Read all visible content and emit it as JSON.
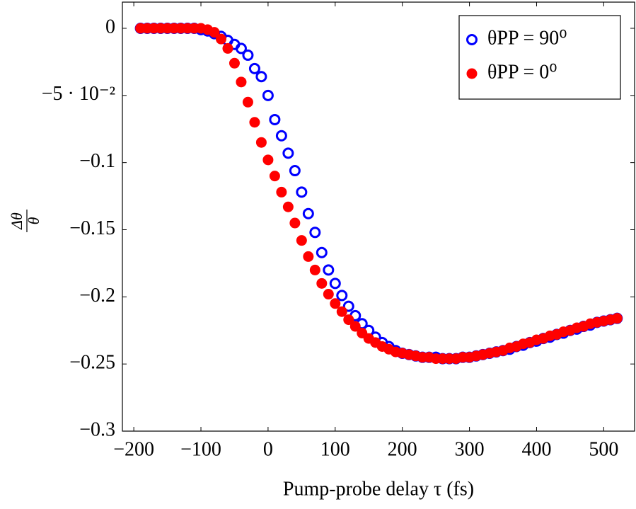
{
  "chart_data": {
    "type": "scatter",
    "xlabel": "Pump-probe delay τ (fs)",
    "ylabel": {
      "numerator": "Δθ",
      "denominator": "θ"
    },
    "x": [
      -190,
      -180,
      -170,
      -160,
      -150,
      -140,
      -130,
      -120,
      -110,
      -100,
      -90,
      -80,
      -70,
      -60,
      -50,
      -40,
      -30,
      -20,
      -10,
      0,
      10,
      20,
      30,
      40,
      50,
      60,
      70,
      80,
      90,
      100,
      110,
      120,
      130,
      140,
      150,
      160,
      170,
      180,
      190,
      200,
      210,
      220,
      230,
      240,
      250,
      260,
      270,
      280,
      290,
      300,
      310,
      320,
      330,
      340,
      350,
      360,
      370,
      380,
      390,
      400,
      410,
      420,
      430,
      440,
      450,
      460,
      470,
      480,
      490,
      500,
      510,
      520
    ],
    "series": [
      {
        "name": "θPP = 90⁰",
        "color": "#0000ff",
        "marker": "open",
        "values": [
          0,
          0,
          0,
          0,
          0,
          0,
          0,
          0,
          0,
          -0.001,
          -0.002,
          -0.004,
          -0.006,
          -0.009,
          -0.012,
          -0.015,
          -0.02,
          -0.03,
          -0.036,
          -0.05,
          -0.068,
          -0.08,
          -0.093,
          -0.106,
          -0.122,
          -0.138,
          -0.152,
          -0.167,
          -0.18,
          -0.19,
          -0.199,
          -0.207,
          -0.214,
          -0.22,
          -0.225,
          -0.23,
          -0.234,
          -0.237,
          -0.24,
          -0.242,
          -0.243,
          -0.244,
          -0.245,
          -0.245,
          -0.245,
          -0.246,
          -0.246,
          -0.246,
          -0.245,
          -0.245,
          -0.244,
          -0.243,
          -0.242,
          -0.241,
          -0.24,
          -0.239,
          -0.237,
          -0.236,
          -0.234,
          -0.233,
          -0.231,
          -0.23,
          -0.228,
          -0.227,
          -0.225,
          -0.224,
          -0.222,
          -0.221,
          -0.219,
          -0.218,
          -0.217,
          -0.216
        ]
      },
      {
        "name": "θPP = 0⁰",
        "color": "#ff0000",
        "marker": "filled",
        "values": [
          0,
          0,
          0,
          0,
          0,
          0,
          0,
          0,
          0,
          0,
          -0.001,
          -0.003,
          -0.008,
          -0.015,
          -0.026,
          -0.04,
          -0.055,
          -0.07,
          -0.085,
          -0.098,
          -0.11,
          -0.122,
          -0.133,
          -0.145,
          -0.158,
          -0.17,
          -0.18,
          -0.19,
          -0.198,
          -0.205,
          -0.211,
          -0.217,
          -0.222,
          -0.227,
          -0.231,
          -0.234,
          -0.237,
          -0.239,
          -0.241,
          -0.242,
          -0.243,
          -0.244,
          -0.245,
          -0.245,
          -0.246,
          -0.246,
          -0.246,
          -0.246,
          -0.245,
          -0.245,
          -0.244,
          -0.243,
          -0.242,
          -0.241,
          -0.24,
          -0.238,
          -0.237,
          -0.235,
          -0.234,
          -0.232,
          -0.231,
          -0.229,
          -0.228,
          -0.226,
          -0.225,
          -0.223,
          -0.222,
          -0.22,
          -0.219,
          -0.218,
          -0.217,
          -0.216
        ]
      }
    ],
    "xlim": [
      -217,
      546
    ],
    "ylim": [
      -0.3,
      0.0195
    ],
    "xticks": [
      {
        "value": -200,
        "label": "−200"
      },
      {
        "value": -100,
        "label": "−100"
      },
      0,
      100,
      200,
      300,
      400,
      500
    ],
    "yticks": [
      0,
      {
        "value": -0.05,
        "label": "−5 · 10⁻²"
      },
      {
        "value": -0.1,
        "label": "−0.1"
      },
      {
        "value": -0.15,
        "label": "−0.15"
      },
      {
        "value": -0.2,
        "label": "−0.2"
      },
      {
        "value": -0.25,
        "label": "−0.25"
      },
      {
        "value": -0.3,
        "label": "−0.3"
      }
    ],
    "grid": false,
    "legend": "upper right"
  }
}
